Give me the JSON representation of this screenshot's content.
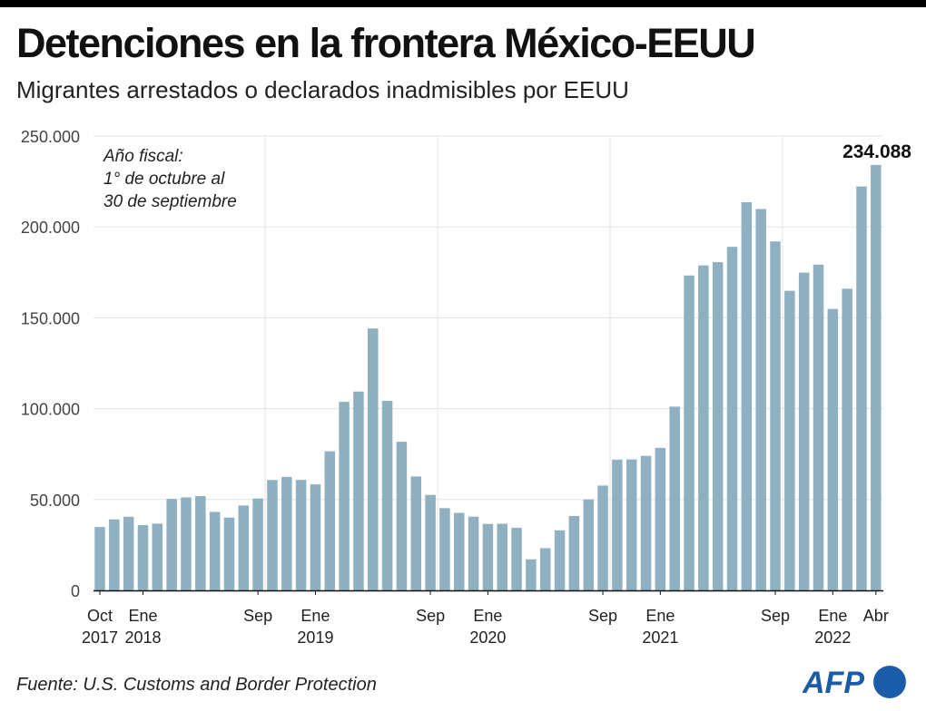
{
  "header": {
    "title": "Detenciones en la frontera México-EEUU",
    "subtitle": "Migrantes arrestados o declarados inadmisibles por EEUU"
  },
  "annotation": [
    "Año fiscal:",
    "1° de octubre al",
    "30 de septiembre"
  ],
  "footer": {
    "source": "Fuente: U.S. Customs and Border Protection",
    "logo": "AFP"
  },
  "colors": {
    "bar": "#8fb0c0",
    "grid": "#e3e3e3",
    "text": "#222222",
    "logo": "#1a5ca8"
  },
  "chart_data": {
    "type": "bar",
    "title": "Detenciones en la frontera México-EEUU",
    "subtitle": "Migrantes arrestados o declarados inadmisibles por EEUU",
    "xlabel": "",
    "ylabel": "",
    "ylim": [
      0,
      250000
    ],
    "yticks": [
      0,
      50000,
      100000,
      150000,
      200000,
      250000
    ],
    "ytick_labels": [
      "0",
      "50.000",
      "100.000",
      "150.000",
      "200.000",
      "250.000"
    ],
    "grid": true,
    "x_tick_labels": [
      {
        "index": 0,
        "line1": "Oct",
        "line2": "2017"
      },
      {
        "index": 3,
        "line1": "Ene",
        "line2": "2018"
      },
      {
        "index": 11,
        "line1": "Sep",
        "line2": ""
      },
      {
        "index": 15,
        "line1": "Ene",
        "line2": "2019"
      },
      {
        "index": 23,
        "line1": "Sep",
        "line2": ""
      },
      {
        "index": 27,
        "line1": "Ene",
        "line2": "2020"
      },
      {
        "index": 35,
        "line1": "Sep",
        "line2": ""
      },
      {
        "index": 39,
        "line1": "Ene",
        "line2": "2021"
      },
      {
        "index": 47,
        "line1": "Sep",
        "line2": ""
      },
      {
        "index": 51,
        "line1": "Ene",
        "line2": "2022"
      },
      {
        "index": 54,
        "line1": "Abr",
        "line2": ""
      }
    ],
    "data_label": {
      "index": 54,
      "text": "234.088"
    },
    "values": [
      34857,
      39051,
      40519,
      35905,
      36751,
      50347,
      51168,
      51862,
      43180,
      40036,
      46719,
      50568,
      60743,
      62469,
      60782,
      58317,
      76545,
      103731,
      109415,
      144116,
      104311,
      81777,
      62707,
      52546,
      45250,
      42643,
      40565,
      36585,
      36687,
      34460,
      17106,
      23237,
      33049,
      40929,
      50014,
      57674,
      71929,
      72113,
      73994,
      78414,
      101099,
      173277,
      178795,
      180597,
      189034,
      213593,
      209840,
      192001,
      164837,
      174845,
      179253,
      154874,
      166010,
      222239,
      234088
    ]
  }
}
